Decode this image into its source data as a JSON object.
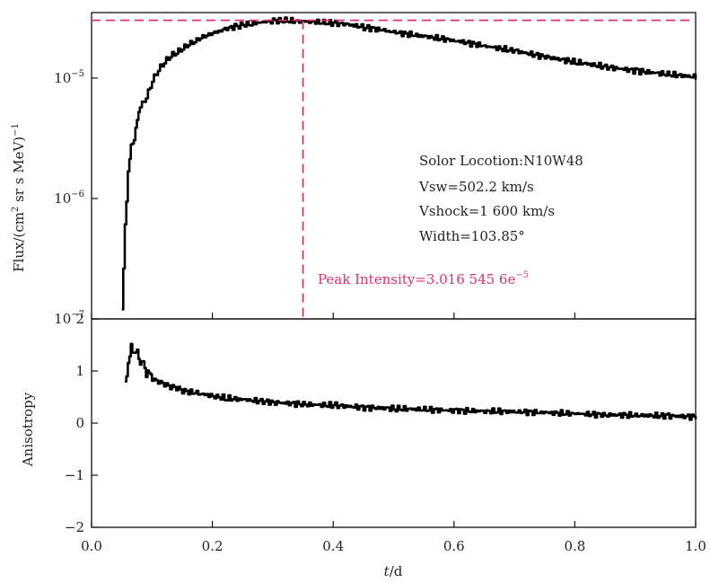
{
  "chart_data": [
    {
      "type": "line",
      "panel": "top",
      "ylabel_main": "Flux/(cm",
      "ylabel_sup1": "2",
      "ylabel_mid": " sr s MeV)",
      "ylabel_sup2": "−1",
      "yscale": "log",
      "ylim": [
        1e-07,
        3.5e-05
      ],
      "xlim": [
        0,
        1.0
      ],
      "y_ticks": [
        {
          "value": 1e-07,
          "base": "10",
          "exp": "−7"
        },
        {
          "value": 1e-06,
          "base": "10",
          "exp": "−6"
        },
        {
          "value": 1e-05,
          "base": "10",
          "exp": "−5"
        }
      ],
      "series": [
        {
          "x": [
            0.05,
            0.055,
            0.06,
            0.065,
            0.07,
            0.075,
            0.08,
            0.09,
            0.1,
            0.11,
            0.12,
            0.13,
            0.14,
            0.15,
            0.16,
            0.17,
            0.18,
            0.19,
            0.2,
            0.22,
            0.24,
            0.26,
            0.28,
            0.3,
            0.32,
            0.34,
            0.36,
            0.38,
            0.4,
            0.42,
            0.45,
            0.48,
            0.5,
            0.55,
            0.6,
            0.65,
            0.7,
            0.75,
            0.8,
            0.85,
            0.9,
            0.95,
            1.0
          ],
          "y": [
            1.2e-07,
            6e-07,
            1.6e-06,
            2.8e-06,
            3e-06,
            4.6e-06,
            5.8e-06,
            6.9e-06,
            9.5e-06,
            1.17e-05,
            1.35e-05,
            1.52e-05,
            1.62e-05,
            1.75e-05,
            1.9e-05,
            2e-05,
            2.15e-05,
            2.25e-05,
            2.35e-05,
            2.55e-05,
            2.72e-05,
            2.82e-05,
            2.9e-05,
            2.98e-05,
            3e-05,
            2.98e-05,
            2.95e-05,
            2.9e-05,
            2.85e-05,
            2.8e-05,
            2.65e-05,
            2.5e-05,
            2.4e-05,
            2.22e-05,
            2.05e-05,
            1.85e-05,
            1.68e-05,
            1.5e-05,
            1.36e-05,
            1.24e-05,
            1.15e-05,
            1.08e-05,
            1.02e-05
          ]
        }
      ],
      "peak_hline_value": 3.0165456e-05,
      "peak_vline_x": 0.35,
      "annotations": {
        "location": "Solor Locotion:N10W48",
        "vsw": "Vsw=502.2 km/s",
        "vshock": "Vshock=1 600 km/s",
        "width": "Width=103.85°",
        "peak_main": "Peak Intensity=3.016 545 6e",
        "peak_exp": "−5"
      }
    },
    {
      "type": "line",
      "panel": "bottom",
      "ylabel": "Anisotropy",
      "ylim": [
        -2,
        2
      ],
      "xlim": [
        0,
        1.0
      ],
      "y_ticks": [
        {
          "value": 2,
          "label": "2"
        },
        {
          "value": 1,
          "label": "1"
        },
        {
          "value": 0,
          "label": "0"
        },
        {
          "value": -1,
          "label": "−1"
        },
        {
          "value": -2,
          "label": "−2"
        }
      ],
      "x_ticks": [
        {
          "value": 0.0,
          "label": "0.0"
        },
        {
          "value": 0.2,
          "label": "0.2"
        },
        {
          "value": 0.4,
          "label": "0.4"
        },
        {
          "value": 0.6,
          "label": "0.6"
        },
        {
          "value": 0.8,
          "label": "0.8"
        },
        {
          "value": 1.0,
          "label": "1.0"
        }
      ],
      "xlabel_var": "t",
      "xlabel_unit": "/d",
      "series": [
        {
          "x": [
            0.055,
            0.06,
            0.065,
            0.07,
            0.075,
            0.08,
            0.085,
            0.09,
            0.095,
            0.1,
            0.11,
            0.12,
            0.13,
            0.14,
            0.15,
            0.17,
            0.2,
            0.22,
            0.25,
            0.28,
            0.3,
            0.35,
            0.4,
            0.45,
            0.5,
            0.55,
            0.6,
            0.65,
            0.7,
            0.75,
            0.8,
            0.85,
            0.9,
            0.95,
            1.0
          ],
          "y": [
            0.8,
            1.1,
            1.5,
            1.3,
            1.4,
            1.1,
            1.2,
            0.9,
            1.0,
            0.85,
            0.8,
            0.75,
            0.7,
            0.68,
            0.62,
            0.58,
            0.52,
            0.48,
            0.45,
            0.42,
            0.4,
            0.36,
            0.34,
            0.3,
            0.28,
            0.26,
            0.24,
            0.23,
            0.22,
            0.2,
            0.18,
            0.16,
            0.15,
            0.14,
            0.12
          ]
        }
      ]
    }
  ]
}
